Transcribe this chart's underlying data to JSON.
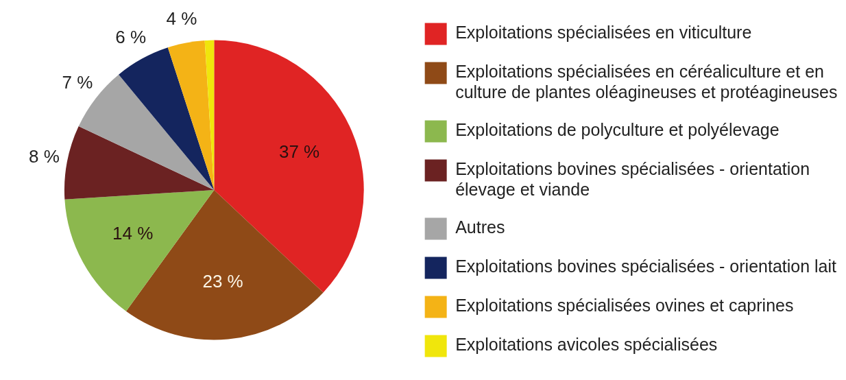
{
  "chart_data": {
    "type": "pie",
    "categories": [
      "Exploitations spécialisées en viticulture",
      "Exploitations spécialisées en céréaliculture et en culture de plantes oléagineuses et protéagineuses",
      "Exploitations de polyculture et polyélevage",
      "Exploitations bovines spécialisées - orientation élevage et viande",
      "Autres",
      "Exploitations bovines spécialisées - orientation lait",
      "Exploitations spécialisées ovines et caprines",
      "Exploitations avicoles spécialisées"
    ],
    "values": [
      37,
      23,
      14,
      8,
      7,
      6,
      4,
      1
    ],
    "colors": [
      "#e02424",
      "#8f4a17",
      "#8cb84e",
      "#6b2222",
      "#a6a6a6",
      "#14255e",
      "#f4b316",
      "#f0e60c"
    ],
    "value_labels": [
      "37 %",
      "23 %",
      "14 %",
      "8 %",
      "7 %",
      "6 %",
      "4 %",
      null
    ],
    "legend": "right"
  }
}
